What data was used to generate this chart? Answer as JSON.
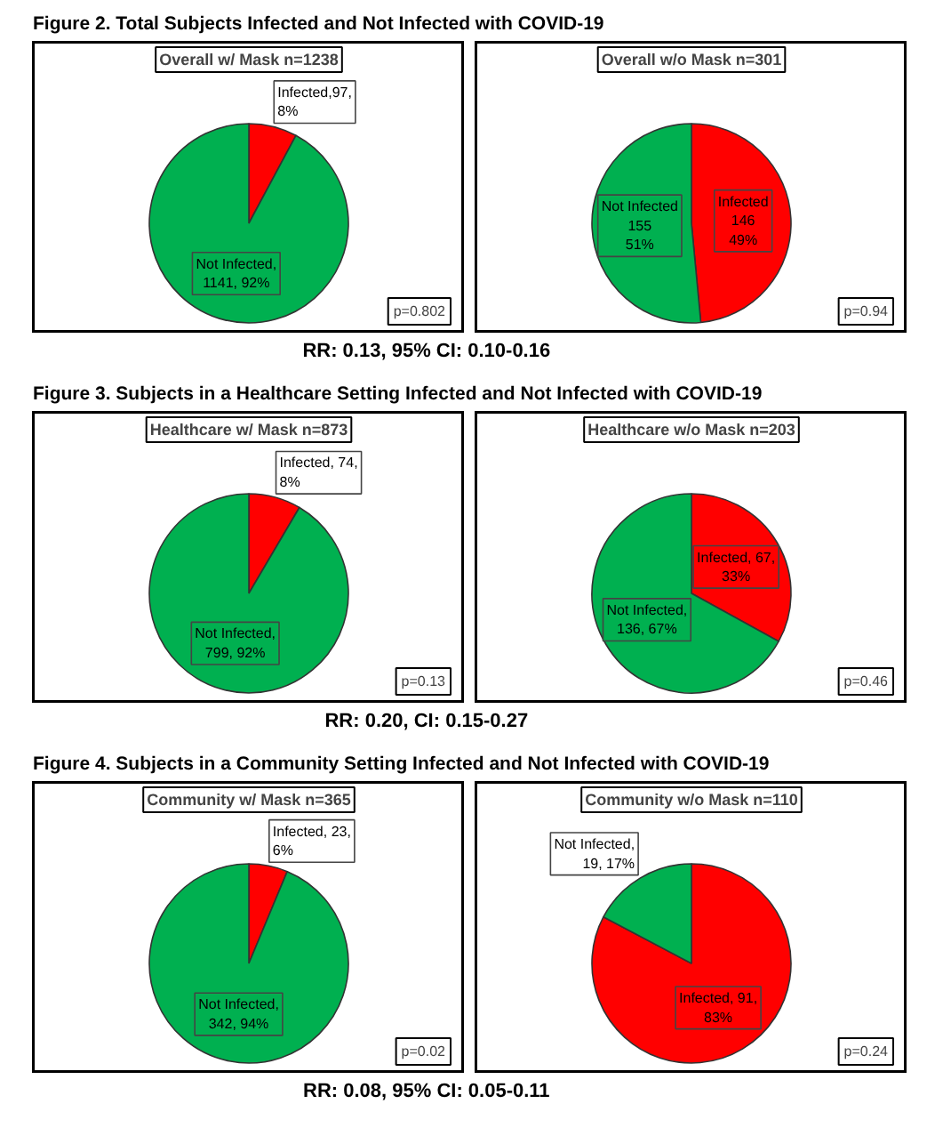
{
  "chart_data": [
    {
      "type": "other",
      "title": "Figure 2. Total Subjects Infected and Not Infected with COVID-19"
    },
    {
      "type": "pie",
      "title": "Overall w/ Mask n=1238",
      "categories": [
        "Infected",
        "Not Infected"
      ],
      "values": [
        97,
        1141
      ],
      "colors": [
        "#ff0000",
        "#00b050"
      ],
      "value_labels": [
        ",97,\n8%",
        ",\n1141, 92%"
      ],
      "annotations": [
        "p=0.802"
      ]
    },
    {
      "type": "pie",
      "title": "Overall w/o Mask n=301",
      "categories": [
        "Infected",
        "Not Infected"
      ],
      "values": [
        146,
        155
      ],
      "colors": [
        "#ff0000",
        "#00b050"
      ],
      "value_labels": [
        "\n146\n49%",
        "\n155\n51%"
      ],
      "annotations": [
        "p=0.94"
      ]
    },
    {
      "type": "other",
      "annotations": [
        "RR: 0.13, 95% CI: 0.10-0.16"
      ]
    },
    {
      "type": "other",
      "title": "Figure 3. Subjects in a Healthcare Setting Infected and Not Infected with COVID-19"
    },
    {
      "type": "pie",
      "title": "Healthcare w/ Mask n=873",
      "categories": [
        "Infected",
        "Not Infected"
      ],
      "values": [
        74,
        799
      ],
      "colors": [
        "#ff0000",
        "#00b050"
      ],
      "value_labels": [
        ", 74,\n8%",
        ",\n799, 92%"
      ],
      "annotations": [
        "p=0.13"
      ]
    },
    {
      "type": "pie",
      "title": "Healthcare w/o Mask n=203",
      "categories": [
        "Infected",
        "Not Infected"
      ],
      "values": [
        67,
        136
      ],
      "colors": [
        "#ff0000",
        "#00b050"
      ],
      "value_labels": [
        ", 67,\n33%",
        ",\n136, 67%"
      ],
      "annotations": [
        "p=0.46"
      ]
    },
    {
      "type": "other",
      "annotations": [
        "RR: 0.20, CI: 0.15-0.27"
      ]
    },
    {
      "type": "other",
      "title": "Figure 4. Subjects in a Community Setting Infected and Not Infected with COVID-19"
    },
    {
      "type": "pie",
      "title": "Community w/ Mask n=365",
      "categories": [
        "Infected",
        "Not Infected"
      ],
      "values": [
        23,
        342
      ],
      "colors": [
        "#ff0000",
        "#00b050"
      ],
      "value_labels": [
        ", 23,\n6%",
        ",\n342, 94%"
      ],
      "annotations": [
        "p=0.02"
      ]
    },
    {
      "type": "pie",
      "title": "Community w/o Mask n=110",
      "categories": [
        "Infected",
        "Not Infected"
      ],
      "values": [
        91,
        19
      ],
      "colors": [
        "#ff0000",
        "#00b050"
      ],
      "value_labels": [
        ", 91,\n83%",
        ",\n19, 17%"
      ],
      "annotations": [
        "p=0.24"
      ]
    },
    {
      "type": "other",
      "annotations": [
        "RR: 0.08, 95% CI: 0.05-0.11"
      ]
    }
  ]
}
